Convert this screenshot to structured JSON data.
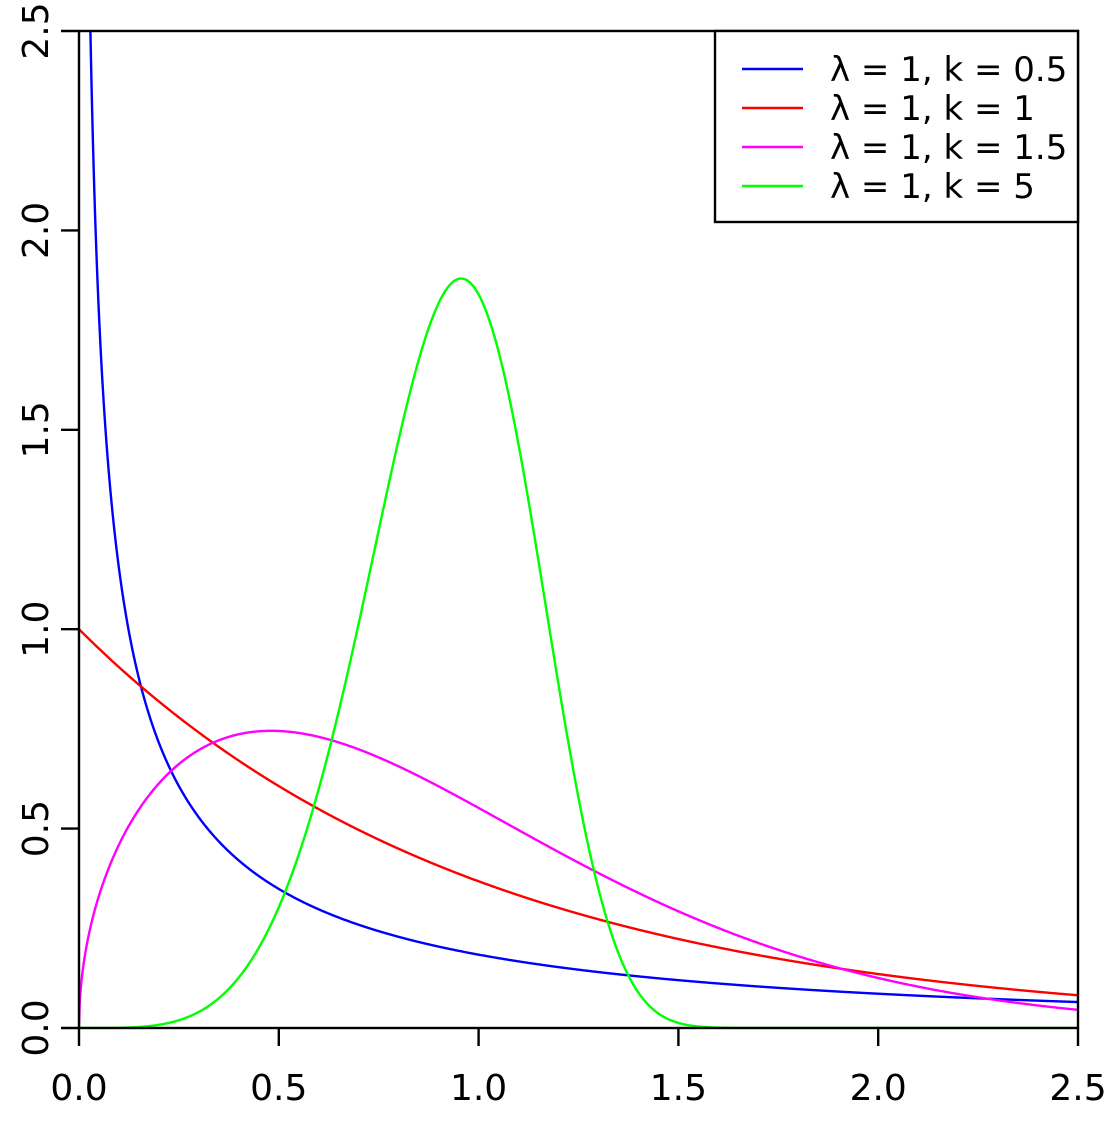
{
  "chart_data": {
    "type": "line",
    "title": "",
    "xlabel": "",
    "ylabel": "",
    "xlim": [
      0,
      2.5
    ],
    "ylim": [
      0,
      2.5
    ],
    "x_ticks": [
      "0.0",
      "0.5",
      "1.0",
      "1.5",
      "2.0",
      "2.5"
    ],
    "y_ticks": [
      "0.0",
      "0.5",
      "1.0",
      "1.5",
      "2.0",
      "2.5"
    ],
    "grid": false,
    "legend_position": "top-right",
    "series": [
      {
        "name": "λ = 1, k = 0.5",
        "color": "#0000ff",
        "lambda": 1,
        "k": 0.5
      },
      {
        "name": "λ = 1, k = 1",
        "color": "#ff0000",
        "lambda": 1,
        "k": 1
      },
      {
        "name": "λ = 1, k = 1.5",
        "color": "#ff00ff",
        "lambda": 1,
        "k": 1.5
      },
      {
        "name": "λ = 1, k = 5",
        "color": "#00ff00",
        "lambda": 1,
        "k": 5
      }
    ]
  }
}
